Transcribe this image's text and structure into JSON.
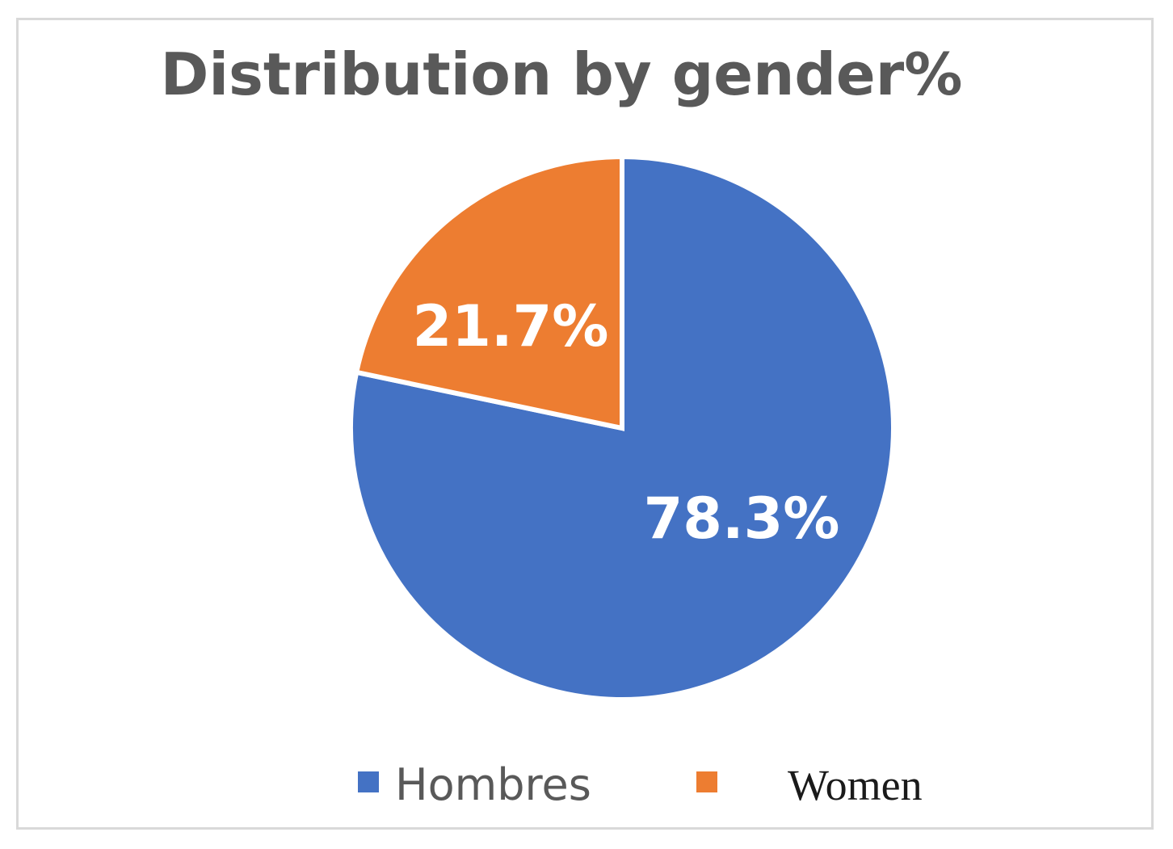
{
  "chart_data": {
    "type": "pie",
    "title": "Distribution by gender%",
    "slices": [
      {
        "name": "Hombres",
        "value": 78.3,
        "label": "78.3%",
        "color": "#4472C4"
      },
      {
        "name": "Women",
        "value": 21.7,
        "label": "21.7%",
        "color": "#ED7D31"
      }
    ],
    "legend": {
      "position": "bottom",
      "entries": [
        "Hombres",
        "Women"
      ]
    }
  }
}
